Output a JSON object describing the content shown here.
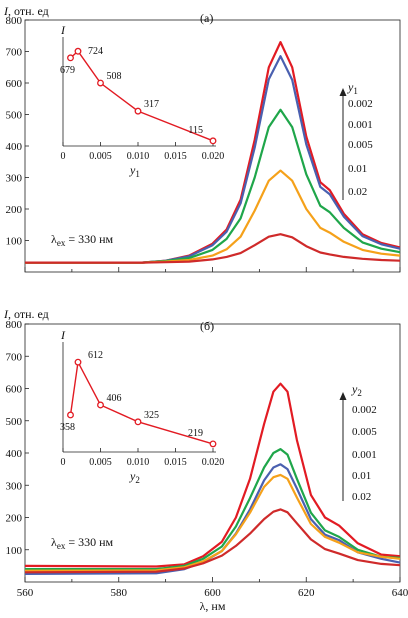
{
  "chart_data": [
    {
      "panel": "(а)",
      "type": "line",
      "ylabel_symbol": "I",
      "ylabel_unit": ", отн. ед",
      "ylim": [
        0,
        800
      ],
      "yticks": [
        "800",
        "700",
        "600",
        "500",
        "400",
        "300",
        "200",
        "100"
      ],
      "xlim": [
        560,
        640
      ],
      "excitation": "λex = 330 нм",
      "legend_title": "y1",
      "legend_values": [
        "0.002",
        "0.001",
        "0.005",
        "0.01",
        "0.02"
      ],
      "series": [
        {
          "color": "#e21b23",
          "points": [
            [
              560,
              30
            ],
            [
              585,
              30
            ],
            [
              590,
              36
            ],
            [
              595,
              52
            ],
            [
              600,
              90
            ],
            [
              603,
              135
            ],
            [
              606,
              230
            ],
            [
              609,
              420
            ],
            [
              612,
              650
            ],
            [
              614.5,
              730
            ],
            [
              617,
              650
            ],
            [
              620,
              430
            ],
            [
              623,
              285
            ],
            [
              625,
              260
            ],
            [
              628,
              185
            ],
            [
              632,
              120
            ],
            [
              636,
              92
            ],
            [
              640,
              78
            ]
          ]
        },
        {
          "color": "#4a60b0",
          "points": [
            [
              560,
              30
            ],
            [
              585,
              30
            ],
            [
              590,
              36
            ],
            [
              595,
              50
            ],
            [
              600,
              85
            ],
            [
              603,
              128
            ],
            [
              606,
              218
            ],
            [
              609,
              395
            ],
            [
              612,
              612
            ],
            [
              614.5,
              685
            ],
            [
              617,
              610
            ],
            [
              620,
              405
            ],
            [
              623,
              270
            ],
            [
              625,
              247
            ],
            [
              628,
              176
            ],
            [
              632,
              114
            ],
            [
              636,
              88
            ],
            [
              640,
              74
            ]
          ]
        },
        {
          "color": "#1fa64a",
          "points": [
            [
              560,
              30
            ],
            [
              585,
              30
            ],
            [
              590,
              35
            ],
            [
              595,
              44
            ],
            [
              600,
              70
            ],
            [
              603,
              105
            ],
            [
              606,
              170
            ],
            [
              609,
              300
            ],
            [
              612,
              460
            ],
            [
              614.5,
              515
            ],
            [
              617,
              460
            ],
            [
              620,
              310
            ],
            [
              623,
              210
            ],
            [
              625,
              190
            ],
            [
              628,
              140
            ],
            [
              632,
              94
            ],
            [
              636,
              74
            ],
            [
              640,
              63
            ]
          ]
        },
        {
          "color": "#f5a11a",
          "points": [
            [
              560,
              30
            ],
            [
              585,
              30
            ],
            [
              590,
              33
            ],
            [
              595,
              38
            ],
            [
              600,
              52
            ],
            [
              603,
              72
            ],
            [
              606,
              112
            ],
            [
              609,
              195
            ],
            [
              612,
              290
            ],
            [
              614.5,
              322
            ],
            [
              617,
              290
            ],
            [
              620,
              200
            ],
            [
              623,
              140
            ],
            [
              625,
              125
            ],
            [
              628,
              96
            ],
            [
              632,
              70
            ],
            [
              636,
              58
            ],
            [
              640,
              52
            ]
          ]
        },
        {
          "color": "#cf2a2a",
          "points": [
            [
              560,
              30
            ],
            [
              585,
              30
            ],
            [
              590,
              31
            ],
            [
              595,
              33
            ],
            [
              600,
              40
            ],
            [
              603,
              48
            ],
            [
              606,
              60
            ],
            [
              609,
              85
            ],
            [
              612,
              112
            ],
            [
              614.5,
              120
            ],
            [
              617,
              110
            ],
            [
              620,
              82
            ],
            [
              623,
              62
            ],
            [
              625,
              56
            ],
            [
              628,
              48
            ],
            [
              632,
              42
            ],
            [
              636,
              38
            ],
            [
              640,
              36
            ]
          ]
        }
      ],
      "inset": {
        "ylabel": "I",
        "xlabel": "y1",
        "xticks": [
          "0",
          "0.005",
          "0.010",
          "0.015",
          "0.020"
        ],
        "points": [
          {
            "x": 0.001,
            "y": 679,
            "label": "679"
          },
          {
            "x": 0.002,
            "y": 724,
            "label": "724"
          },
          {
            "x": 0.005,
            "y": 508,
            "label": "508"
          },
          {
            "x": 0.01,
            "y": 317,
            "label": "317"
          },
          {
            "x": 0.02,
            "y": 115,
            "label": "115"
          }
        ]
      }
    },
    {
      "panel": "(б)",
      "type": "line",
      "ylabel_symbol": "I",
      "ylabel_unit": ", отн. ед",
      "ylim": [
        0,
        800
      ],
      "yticks": [
        "800",
        "700",
        "600",
        "500",
        "400",
        "300",
        "200",
        "100"
      ],
      "xlim": [
        560,
        640
      ],
      "xticks": [
        "560",
        "580",
        "600",
        "620",
        "640"
      ],
      "xlabel": "λ, нм",
      "excitation": "λex = 330 нм",
      "legend_title": "y2",
      "legend_values": [
        "0.002",
        "0.005",
        "0.001",
        "0.01",
        "0.02"
      ],
      "series": [
        {
          "color": "#e21b23",
          "points": [
            [
              560,
              50
            ],
            [
              588,
              48
            ],
            [
              594,
              55
            ],
            [
              598,
              80
            ],
            [
              602,
              125
            ],
            [
              605,
              200
            ],
            [
              608,
              320
            ],
            [
              611,
              490
            ],
            [
              613,
              590
            ],
            [
              614.5,
              615
            ],
            [
              616,
              590
            ],
            [
              618,
              440
            ],
            [
              621,
              270
            ],
            [
              624,
              200
            ],
            [
              627,
              175
            ],
            [
              631,
              120
            ],
            [
              636,
              85
            ],
            [
              640,
              80
            ]
          ]
        },
        {
          "color": "#1fa64a",
          "points": [
            [
              560,
              40
            ],
            [
              588,
              40
            ],
            [
              594,
              50
            ],
            [
              598,
              72
            ],
            [
              602,
              110
            ],
            [
              605,
              172
            ],
            [
              608,
              260
            ],
            [
              611,
              355
            ],
            [
              613,
              400
            ],
            [
              614.5,
              412
            ],
            [
              616,
              395
            ],
            [
              618,
              320
            ],
            [
              621,
              215
            ],
            [
              624,
              160
            ],
            [
              627,
              140
            ],
            [
              631,
              100
            ],
            [
              636,
              78
            ],
            [
              640,
              75
            ]
          ]
        },
        {
          "color": "#4a60b0",
          "points": [
            [
              560,
              25
            ],
            [
              588,
              27
            ],
            [
              594,
              40
            ],
            [
              598,
              62
            ],
            [
              602,
              96
            ],
            [
              605,
              150
            ],
            [
              608,
              225
            ],
            [
              611,
              315
            ],
            [
              613,
              355
            ],
            [
              614.5,
              365
            ],
            [
              616,
              350
            ],
            [
              618,
              290
            ],
            [
              621,
              195
            ],
            [
              624,
              147
            ],
            [
              627,
              130
            ],
            [
              631,
              92
            ],
            [
              636,
              72
            ],
            [
              640,
              60
            ]
          ]
        },
        {
          "color": "#f5a11a",
          "points": [
            [
              560,
              35
            ],
            [
              588,
              36
            ],
            [
              594,
              46
            ],
            [
              598,
              64
            ],
            [
              602,
              96
            ],
            [
              605,
              148
            ],
            [
              608,
              215
            ],
            [
              611,
              295
            ],
            [
              613,
              325
            ],
            [
              614.5,
              332
            ],
            [
              616,
              320
            ],
            [
              618,
              262
            ],
            [
              621,
              180
            ],
            [
              624,
              140
            ],
            [
              627,
              122
            ],
            [
              631,
              92
            ],
            [
              636,
              78
            ],
            [
              640,
              72
            ]
          ]
        },
        {
          "color": "#cf2a2a",
          "points": [
            [
              560,
              30
            ],
            [
              588,
              32
            ],
            [
              594,
              42
            ],
            [
              598,
              58
            ],
            [
              602,
              82
            ],
            [
              605,
              112
            ],
            [
              608,
              150
            ],
            [
              611,
              195
            ],
            [
              613,
              218
            ],
            [
              614.5,
              225
            ],
            [
              616,
              216
            ],
            [
              618,
              182
            ],
            [
              621,
              132
            ],
            [
              624,
              102
            ],
            [
              627,
              88
            ],
            [
              631,
              68
            ],
            [
              636,
              56
            ],
            [
              640,
              52
            ]
          ]
        }
      ],
      "inset": {
        "ylabel": "I",
        "xlabel": "y2",
        "xticks": [
          "0",
          "0.005",
          "0.010",
          "0.015",
          "0.020"
        ],
        "points": [
          {
            "x": 0.001,
            "y": 358,
            "label": "358"
          },
          {
            "x": 0.002,
            "y": 612,
            "label": "612"
          },
          {
            "x": 0.005,
            "y": 406,
            "label": "406"
          },
          {
            "x": 0.01,
            "y": 325,
            "label": "325"
          },
          {
            "x": 0.02,
            "y": 219,
            "label": "219"
          }
        ]
      }
    }
  ]
}
